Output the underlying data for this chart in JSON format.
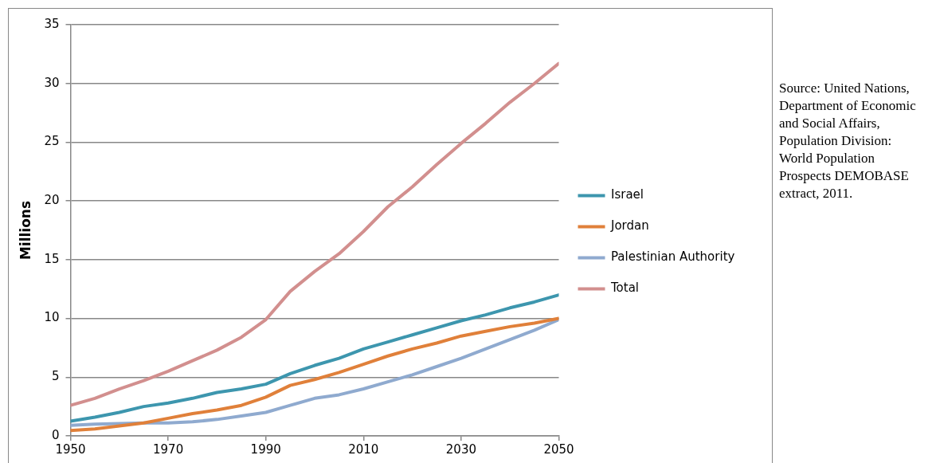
{
  "chart_data": {
    "type": "line",
    "ylabel": "Millions",
    "x": [
      1950,
      1955,
      1960,
      1965,
      1970,
      1975,
      1980,
      1985,
      1990,
      1995,
      2000,
      2005,
      2010,
      2015,
      2020,
      2025,
      2030,
      2035,
      2040,
      2045,
      2050
    ],
    "series": [
      {
        "name": "Israel",
        "color": "#3d96ae",
        "values": [
          1.26,
          1.6,
          2.0,
          2.5,
          2.8,
          3.2,
          3.7,
          4.0,
          4.4,
          5.3,
          6.0,
          6.6,
          7.4,
          8.0,
          8.6,
          9.2,
          9.8,
          10.3,
          10.9,
          11.4,
          12.0
        ]
      },
      {
        "name": "Jordan",
        "color": "#e0803a",
        "values": [
          0.45,
          0.6,
          0.85,
          1.1,
          1.5,
          1.9,
          2.2,
          2.6,
          3.3,
          4.3,
          4.8,
          5.4,
          6.1,
          6.8,
          7.4,
          7.9,
          8.5,
          8.9,
          9.3,
          9.6,
          10.0
        ]
      },
      {
        "name": "Palestinian Authority",
        "color": "#8faacf",
        "values": [
          0.9,
          1.0,
          1.05,
          1.1,
          1.1,
          1.2,
          1.4,
          1.7,
          2.0,
          2.6,
          3.2,
          3.5,
          4.0,
          4.6,
          5.2,
          5.9,
          6.6,
          7.4,
          8.2,
          9.0,
          9.9
        ]
      },
      {
        "name": "Total",
        "color": "#d28f8e",
        "values": [
          2.6,
          3.2,
          4.0,
          4.7,
          5.5,
          6.4,
          7.3,
          8.4,
          9.9,
          12.3,
          14.0,
          15.5,
          17.4,
          19.5,
          21.2,
          23.1,
          24.9,
          26.6,
          28.4,
          30.0,
          31.7
        ]
      }
    ],
    "xlim": [
      1950,
      2050
    ],
    "xticks": [
      1950,
      1970,
      1990,
      2010,
      2030,
      2050
    ],
    "ylim": [
      0,
      35
    ],
    "yticks": [
      0,
      5,
      10,
      15,
      20,
      25,
      30,
      35
    ],
    "grid": "y",
    "legend": "right",
    "marker": "none",
    "line_style": "solid",
    "annotations": [
      "Source: United Nations, Department of Economic and Social Affairs, Population Division: World Population Prospects DEMOBASE extract, 2011."
    ]
  }
}
